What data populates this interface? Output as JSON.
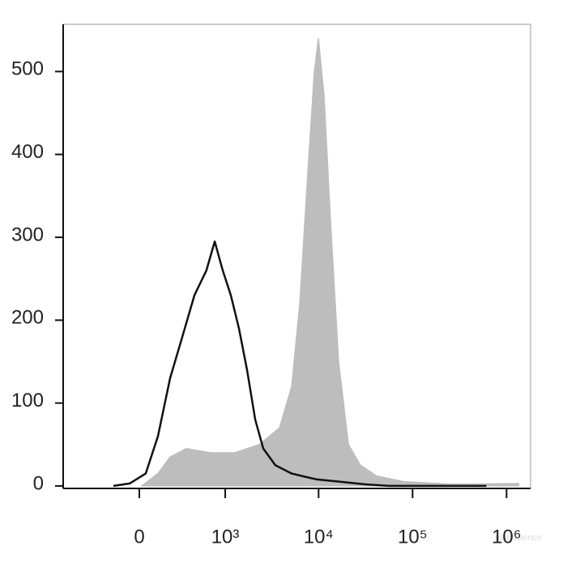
{
  "chart_data": {
    "type": "histogram-overlay",
    "xscale": "biexponential",
    "xlim": [
      -780,
      1800000
    ],
    "xticks": [
      0,
      {
        "value": 1000,
        "label": "10³"
      },
      {
        "value": 10000,
        "label": "10⁴"
      },
      {
        "value": 100000,
        "label": "10⁵"
      },
      {
        "value": 1000000,
        "label": "10⁶"
      }
    ],
    "ylim": [
      -3,
      557
    ],
    "yticks": [
      0,
      100,
      200,
      300,
      400,
      500
    ],
    "watermark": "elabscience",
    "series": [
      {
        "color": "#bdbdbd",
        "fill": true,
        "x": [
          15,
          117,
          205,
          352,
          688,
          1275,
          2330,
          3840,
          5170,
          6310,
          7700,
          9010,
          9950,
          11430,
          13390,
          16330,
          20740,
          27900,
          41530,
          83200,
          273500,
          1346000
        ],
        "values": [
          0,
          15,
          35,
          45,
          40,
          40,
          50,
          70,
          120,
          220,
          380,
          500,
          540,
          470,
          320,
          150,
          50,
          25,
          12,
          5,
          2,
          3
        ]
      },
      {
        "color": "#111111",
        "fill": false,
        "x": [
          -168,
          -59,
          39,
          117,
          205,
          312,
          445,
          616,
          765,
          940,
          1153,
          1411,
          1725,
          2109,
          2576,
          3465,
          5170,
          9380,
          17000,
          30840,
          55900,
          609000
        ],
        "values": [
          0,
          3,
          15,
          60,
          130,
          180,
          230,
          260,
          295,
          260,
          230,
          190,
          140,
          80,
          45,
          25,
          15,
          8,
          5,
          2,
          0,
          0
        ]
      }
    ]
  }
}
